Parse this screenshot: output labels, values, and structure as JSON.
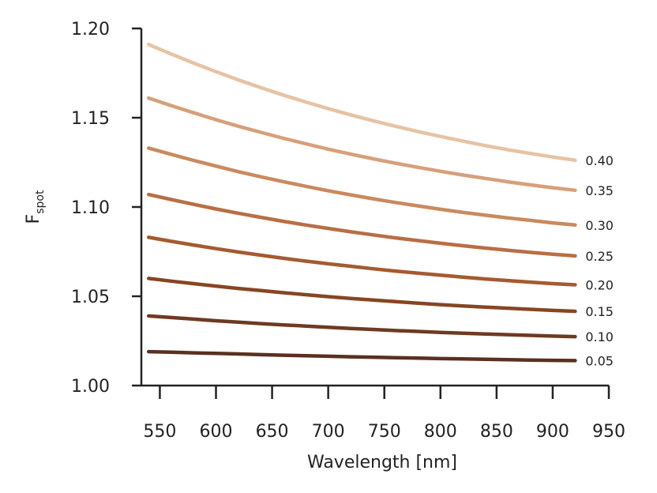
{
  "chart_data": {
    "type": "line",
    "title": "",
    "xlabel": "Wavelength [nm]",
    "ylabel_main": "F",
    "ylabel_sub": "spot",
    "xlim": [
      530,
      950
    ],
    "ylim": [
      1.0,
      1.2
    ],
    "xticks": [
      550,
      600,
      650,
      700,
      750,
      800,
      850,
      900,
      950
    ],
    "xtick_labels": [
      "550",
      "600",
      "650",
      "700",
      "750",
      "800",
      "850",
      "900",
      "950"
    ],
    "yticks": [
      1.0,
      1.05,
      1.1,
      1.15,
      1.2
    ],
    "ytick_labels": [
      "1.00",
      "1.05",
      "1.10",
      "1.15",
      "1.20"
    ],
    "grid": false,
    "x": [
      540,
      560,
      580,
      600,
      620,
      640,
      660,
      680,
      700,
      720,
      740,
      760,
      780,
      800,
      820,
      840,
      860,
      880,
      900,
      920
    ],
    "series": [
      {
        "name": "0.05",
        "label": "0.05",
        "color": "#5a3020",
        "values": [
          1.019,
          1.0187,
          1.0183,
          1.018,
          1.0177,
          1.0173,
          1.017,
          1.0167,
          1.0164,
          1.0161,
          1.0159,
          1.0156,
          1.0154,
          1.0151,
          1.0149,
          1.0147,
          1.0145,
          1.0143,
          1.0141,
          1.014
        ]
      },
      {
        "name": "0.10",
        "label": "0.10",
        "color": "#6e3a22",
        "values": [
          1.039,
          1.0381,
          1.0372,
          1.0363,
          1.0355,
          1.0347,
          1.034,
          1.0333,
          1.0326,
          1.032,
          1.0314,
          1.0308,
          1.0303,
          1.0298,
          1.0293,
          1.0289,
          1.0285,
          1.0281,
          1.0277,
          1.0274
        ]
      },
      {
        "name": "0.15",
        "label": "0.15",
        "color": "#874523",
        "values": [
          1.06,
          1.0585,
          1.0571,
          1.0557,
          1.0544,
          1.0532,
          1.052,
          1.0509,
          1.0498,
          1.0488,
          1.0479,
          1.047,
          1.0461,
          1.0453,
          1.0446,
          1.0439,
          1.0433,
          1.0427,
          1.0421,
          1.0416
        ]
      },
      {
        "name": "0.20",
        "label": "0.20",
        "color": "#a55a30",
        "values": [
          1.083,
          1.0808,
          1.0787,
          1.0767,
          1.0748,
          1.073,
          1.0713,
          1.0697,
          1.0682,
          1.0668,
          1.0654,
          1.0641,
          1.0629,
          1.0618,
          1.0607,
          1.0597,
          1.0588,
          1.0579,
          1.0571,
          1.0564
        ]
      },
      {
        "name": "0.25",
        "label": "0.25",
        "color": "#b86e45",
        "values": [
          1.107,
          1.1042,
          1.1015,
          1.0989,
          1.0965,
          1.0942,
          1.092,
          1.0899,
          1.088,
          1.0861,
          1.0844,
          1.0827,
          1.0812,
          1.0797,
          1.0783,
          1.077,
          1.0758,
          1.0746,
          1.0736,
          1.0726
        ]
      },
      {
        "name": "0.30",
        "label": "0.30",
        "color": "#c98a5f",
        "values": [
          1.133,
          1.1295,
          1.1261,
          1.1229,
          1.1198,
          1.1169,
          1.1142,
          1.1116,
          1.1091,
          1.1068,
          1.1046,
          1.1025,
          1.1006,
          1.0987,
          1.097,
          1.0954,
          1.0939,
          1.0925,
          1.0911,
          1.0899
        ]
      },
      {
        "name": "0.35",
        "label": "0.35",
        "color": "#d6a07a",
        "values": [
          1.161,
          1.1568,
          1.1528,
          1.1489,
          1.1452,
          1.1418,
          1.1385,
          1.1354,
          1.1324,
          1.1296,
          1.127,
          1.1245,
          1.1222,
          1.12,
          1.1179,
          1.116,
          1.1141,
          1.1124,
          1.1108,
          1.1094
        ]
      },
      {
        "name": "0.40",
        "label": "0.40",
        "color": "#e6c3a3",
        "values": [
          1.191,
          1.1857,
          1.1806,
          1.1758,
          1.1712,
          1.1668,
          1.1627,
          1.1588,
          1.1551,
          1.1516,
          1.1483,
          1.1452,
          1.1422,
          1.1395,
          1.1369,
          1.1344,
          1.1321,
          1.13,
          1.128,
          1.1262
        ]
      }
    ]
  }
}
